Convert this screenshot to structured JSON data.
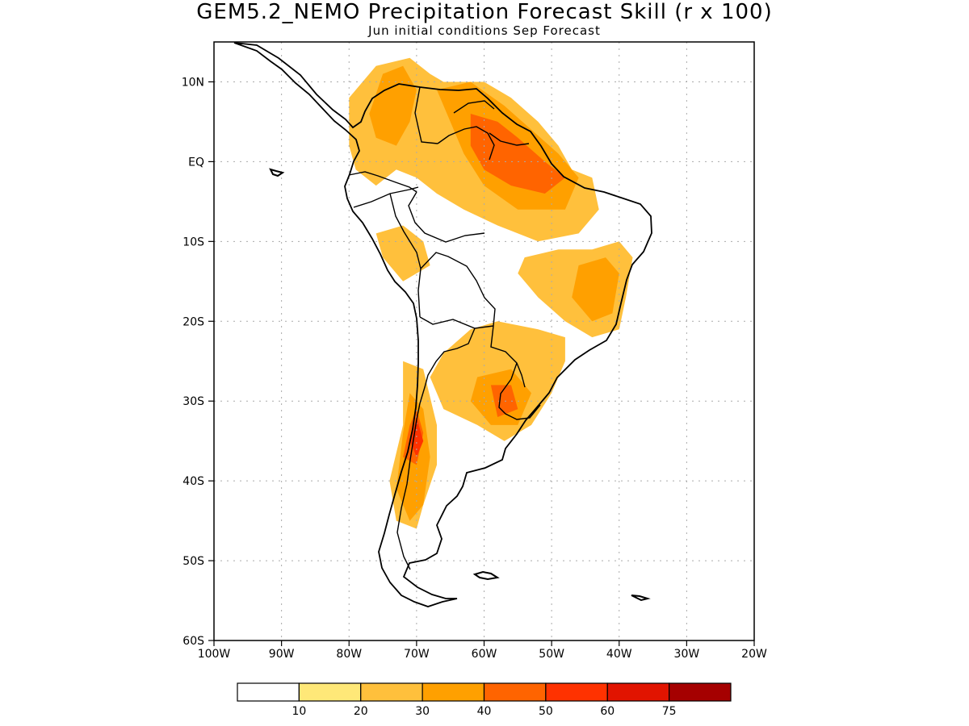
{
  "title": "GEM5.2_NEMO Precipitation Forecast Skill (r x 100)",
  "subtitle": "Jun initial conditions  Sep Forecast",
  "map": {
    "lon_range": [
      -100,
      -20
    ],
    "lat_range": [
      -60,
      15
    ],
    "lat_ticks": [
      {
        "value": 10,
        "label": "10N"
      },
      {
        "value": 0,
        "label": "EQ"
      },
      {
        "value": -10,
        "label": "10S"
      },
      {
        "value": -20,
        "label": "20S"
      },
      {
        "value": -30,
        "label": "30S"
      },
      {
        "value": -40,
        "label": "40S"
      },
      {
        "value": -50,
        "label": "50S"
      },
      {
        "value": -60,
        "label": "60S"
      }
    ],
    "lon_ticks": [
      {
        "value": -100,
        "label": "100W"
      },
      {
        "value": -90,
        "label": "90W"
      },
      {
        "value": -80,
        "label": "80W"
      },
      {
        "value": -70,
        "label": "70W"
      },
      {
        "value": -60,
        "label": "60W"
      },
      {
        "value": -50,
        "label": "50W"
      },
      {
        "value": -40,
        "label": "40W"
      },
      {
        "value": -30,
        "label": "30W"
      },
      {
        "value": -20,
        "label": "20W"
      }
    ],
    "grid": true
  },
  "colorbar": {
    "colors": [
      "#ffffff",
      "#ffe878",
      "#ffc03c",
      "#ffa000",
      "#ff6400",
      "#ff3200",
      "#e11400",
      "#a50000"
    ],
    "labels": [
      "10",
      "20",
      "30",
      "40",
      "50",
      "60",
      "75"
    ]
  },
  "skill_regions": [
    {
      "level": 2,
      "lonlat": [
        [
          -80,
          8
        ],
        [
          -76,
          12
        ],
        [
          -71,
          13
        ],
        [
          -68,
          11
        ],
        [
          -66,
          10
        ],
        [
          -60,
          10
        ],
        [
          -56,
          8
        ],
        [
          -52,
          5
        ],
        [
          -49,
          2
        ],
        [
          -47,
          -1
        ],
        [
          -44,
          -2
        ],
        [
          -43,
          -6
        ],
        [
          -46,
          -9
        ],
        [
          -52,
          -10
        ],
        [
          -58,
          -8
        ],
        [
          -63,
          -6
        ],
        [
          -67,
          -4
        ],
        [
          -70,
          -2
        ],
        [
          -73,
          -1
        ],
        [
          -76,
          -3
        ],
        [
          -79,
          -1
        ],
        [
          -80,
          2
        ]
      ]
    },
    {
      "level": 2,
      "lonlat": [
        [
          -72,
          -8
        ],
        [
          -69,
          -10
        ],
        [
          -68,
          -13
        ],
        [
          -72,
          -15
        ],
        [
          -75,
          -12
        ],
        [
          -76,
          -9
        ]
      ]
    },
    {
      "level": 2,
      "lonlat": [
        [
          -54,
          -12
        ],
        [
          -49,
          -11
        ],
        [
          -44,
          -11
        ],
        [
          -40,
          -10
        ],
        [
          -38,
          -12
        ],
        [
          -39,
          -17
        ],
        [
          -40,
          -21
        ],
        [
          -44,
          -22
        ],
        [
          -48,
          -20
        ],
        [
          -52,
          -17
        ],
        [
          -55,
          -14
        ]
      ]
    },
    {
      "level": 2,
      "lonlat": [
        [
          -62,
          -21
        ],
        [
          -58,
          -20
        ],
        [
          -52,
          -21
        ],
        [
          -48,
          -22
        ],
        [
          -48,
          -25
        ],
        [
          -50,
          -29
        ],
        [
          -53,
          -33
        ],
        [
          -57,
          -35
        ],
        [
          -61,
          -33
        ],
        [
          -66,
          -31
        ],
        [
          -68,
          -27
        ],
        [
          -66,
          -24
        ]
      ]
    },
    {
      "level": 2,
      "lonlat": [
        [
          -72,
          -25
        ],
        [
          -69,
          -26
        ],
        [
          -67,
          -33
        ],
        [
          -67,
          -38
        ],
        [
          -69,
          -43
        ],
        [
          -70,
          -46
        ],
        [
          -73,
          -45
        ],
        [
          -74,
          -40
        ],
        [
          -72,
          -33
        ]
      ]
    },
    {
      "level": 3,
      "lonlat": [
        [
          -75,
          11
        ],
        [
          -72,
          12
        ],
        [
          -70,
          9
        ],
        [
          -71,
          5
        ],
        [
          -73,
          2
        ],
        [
          -76,
          3
        ],
        [
          -77,
          6
        ]
      ]
    },
    {
      "level": 3,
      "lonlat": [
        [
          -67,
          9
        ],
        [
          -62,
          10
        ],
        [
          -57,
          7
        ],
        [
          -53,
          4
        ],
        [
          -49,
          1
        ],
        [
          -46,
          -2
        ],
        [
          -48,
          -6
        ],
        [
          -55,
          -6
        ],
        [
          -60,
          -3
        ],
        [
          -63,
          1
        ],
        [
          -65,
          5
        ]
      ]
    },
    {
      "level": 3,
      "lonlat": [
        [
          -46,
          -13
        ],
        [
          -42,
          -12
        ],
        [
          -40,
          -14
        ],
        [
          -41,
          -19
        ],
        [
          -44,
          -20
        ],
        [
          -47,
          -17
        ]
      ]
    },
    {
      "level": 3,
      "lonlat": [
        [
          -61,
          -27
        ],
        [
          -56,
          -26
        ],
        [
          -53,
          -29
        ],
        [
          -55,
          -33
        ],
        [
          -59,
          -33
        ],
        [
          -62,
          -30
        ]
      ]
    },
    {
      "level": 3,
      "lonlat": [
        [
          -71,
          -29
        ],
        [
          -69,
          -31
        ],
        [
          -68,
          -37
        ],
        [
          -69,
          -43
        ],
        [
          -71,
          -45
        ],
        [
          -73,
          -41
        ],
        [
          -72,
          -34
        ]
      ]
    },
    {
      "level": 4,
      "lonlat": [
        [
          -62,
          6
        ],
        [
          -58,
          5
        ],
        [
          -55,
          3
        ],
        [
          -51,
          0
        ],
        [
          -48,
          -2
        ],
        [
          -51,
          -4
        ],
        [
          -56,
          -3
        ],
        [
          -60,
          -1
        ],
        [
          -62,
          2
        ]
      ]
    },
    {
      "level": 4,
      "lonlat": [
        [
          -59,
          -28
        ],
        [
          -56,
          -28
        ],
        [
          -55,
          -31
        ],
        [
          -58,
          -32
        ]
      ]
    },
    {
      "level": 4,
      "lonlat": [
        [
          -70,
          -31
        ],
        [
          -69,
          -34
        ],
        [
          -70,
          -38
        ],
        [
          -72,
          -37
        ],
        [
          -71,
          -33
        ]
      ]
    },
    {
      "level": 5,
      "lonlat": [
        [
          -70,
          -32
        ],
        [
          -69,
          -35
        ],
        [
          -70,
          -37
        ],
        [
          -71,
          -35
        ]
      ]
    }
  ]
}
